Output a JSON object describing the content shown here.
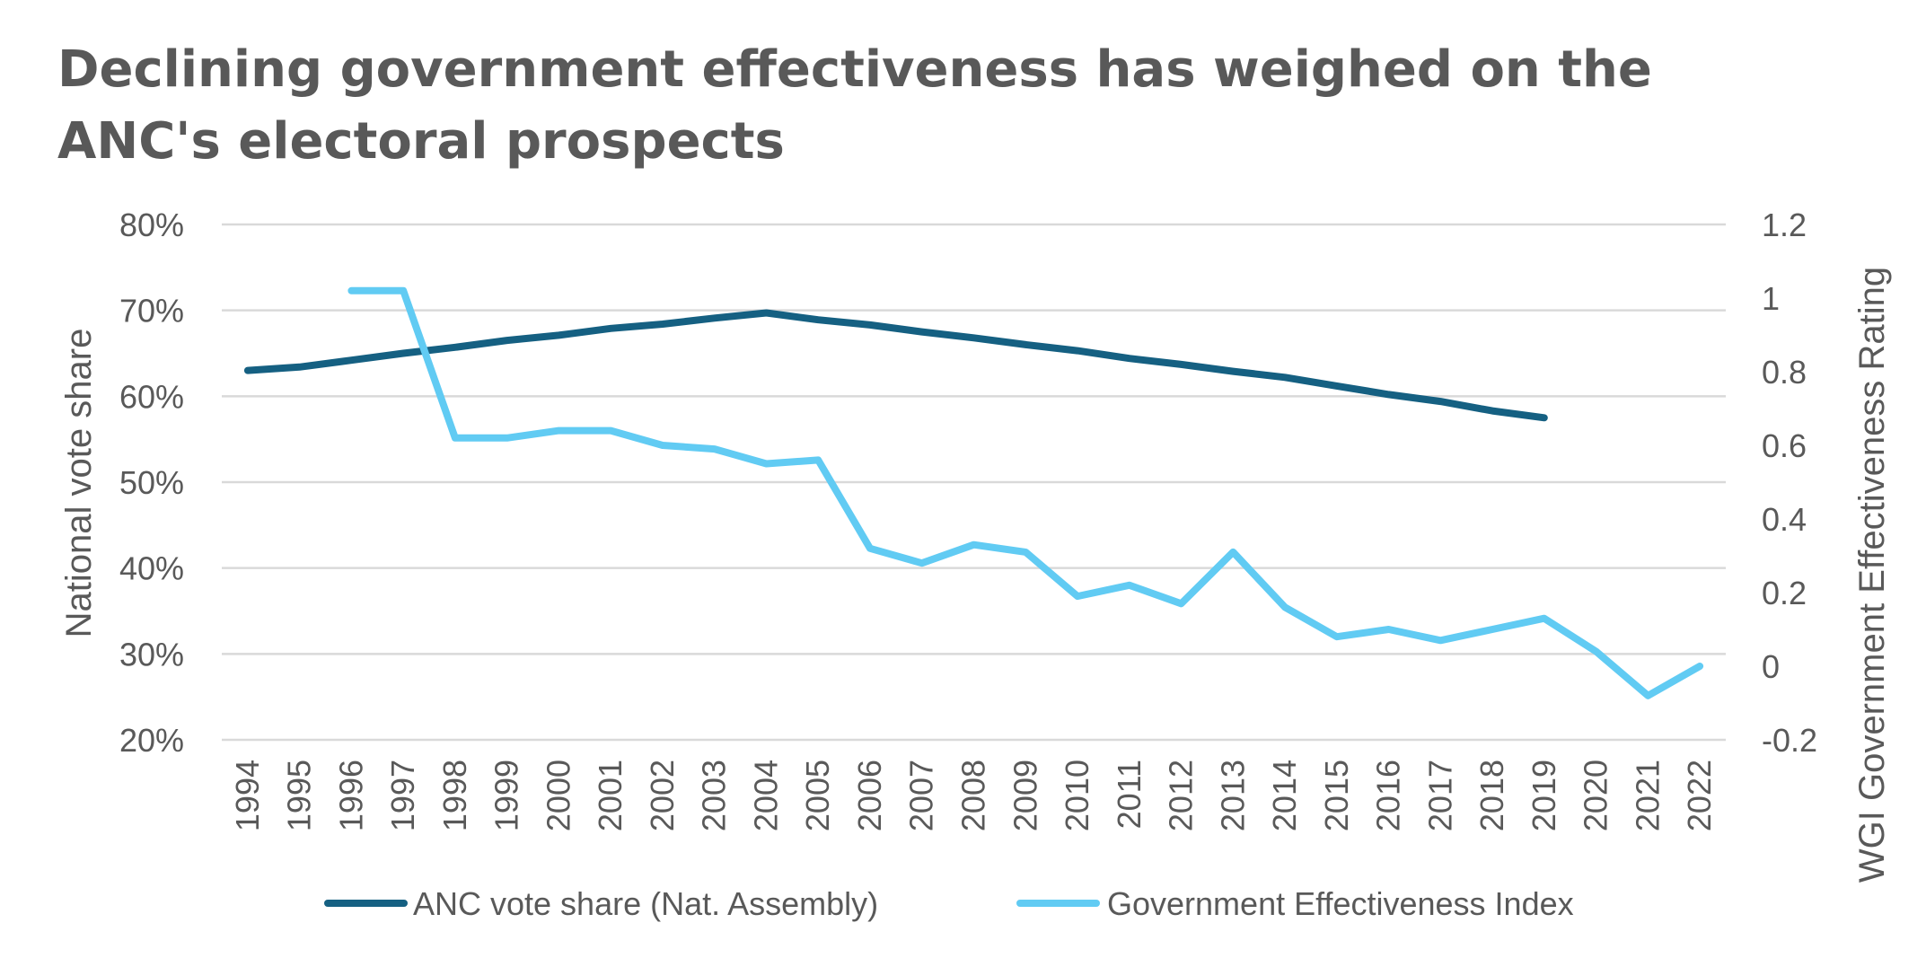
{
  "chart_data": {
    "type": "line",
    "title": "Declining government effectiveness has weighed on the ANC's electoral prospects",
    "x": [
      "1994",
      "1995",
      "1996",
      "1997",
      "1998",
      "1999",
      "2000",
      "2001",
      "2002",
      "2003",
      "2004",
      "2005",
      "2006",
      "2007",
      "2008",
      "2009",
      "2010",
      "2011",
      "2012",
      "2013",
      "2014",
      "2015",
      "2016",
      "2017",
      "2018",
      "2019",
      "2020",
      "2021",
      "2022"
    ],
    "y_left": {
      "label": "National vote share",
      "ylim": [
        20,
        80
      ],
      "ticks": [
        {
          "value": 80,
          "label": "80%"
        },
        {
          "value": 70,
          "label": "70%"
        },
        {
          "value": 60,
          "label": "60%"
        },
        {
          "value": 50,
          "label": "50%"
        },
        {
          "value": 40,
          "label": "40%"
        },
        {
          "value": 30,
          "label": "30%"
        },
        {
          "value": 20,
          "label": "20%"
        }
      ]
    },
    "y_right": {
      "label": "WGI Government Effectiveness Rating",
      "ylim": [
        -0.2,
        1.2
      ],
      "ticks": [
        {
          "value": 1.2,
          "label": "1.2"
        },
        {
          "value": 1.0,
          "label": "1"
        },
        {
          "value": 0.8,
          "label": "0.8"
        },
        {
          "value": 0.6,
          "label": "0.6"
        },
        {
          "value": 0.4,
          "label": "0.4"
        },
        {
          "value": 0.2,
          "label": "0.2"
        },
        {
          "value": 0.0,
          "label": "0"
        },
        {
          "value": -0.2,
          "label": "-0.2"
        }
      ]
    },
    "grid": true,
    "legend_position": "bottom",
    "series": [
      {
        "name": "ANC vote share (Nat. Assembly)",
        "axis": "left",
        "color": "#156082",
        "values": [
          63.0,
          63.4,
          64.2,
          65.0,
          65.7,
          66.5,
          67.1,
          67.9,
          68.4,
          69.1,
          69.7,
          68.9,
          68.3,
          67.5,
          66.8,
          66.0,
          65.3,
          64.4,
          63.7,
          62.9,
          62.2,
          61.2,
          60.2,
          59.4,
          58.3,
          57.5,
          null,
          null,
          null
        ]
      },
      {
        "name": "Government Effectiveness Index",
        "axis": "right",
        "color": "#61CBF3",
        "values": [
          null,
          null,
          1.02,
          1.02,
          0.62,
          0.62,
          0.64,
          0.64,
          0.6,
          0.59,
          0.55,
          0.56,
          0.32,
          0.28,
          0.33,
          0.31,
          0.19,
          0.22,
          0.17,
          0.31,
          0.16,
          0.08,
          0.1,
          0.07,
          0.1,
          0.13,
          0.04,
          -0.08,
          0.0
        ]
      }
    ]
  }
}
